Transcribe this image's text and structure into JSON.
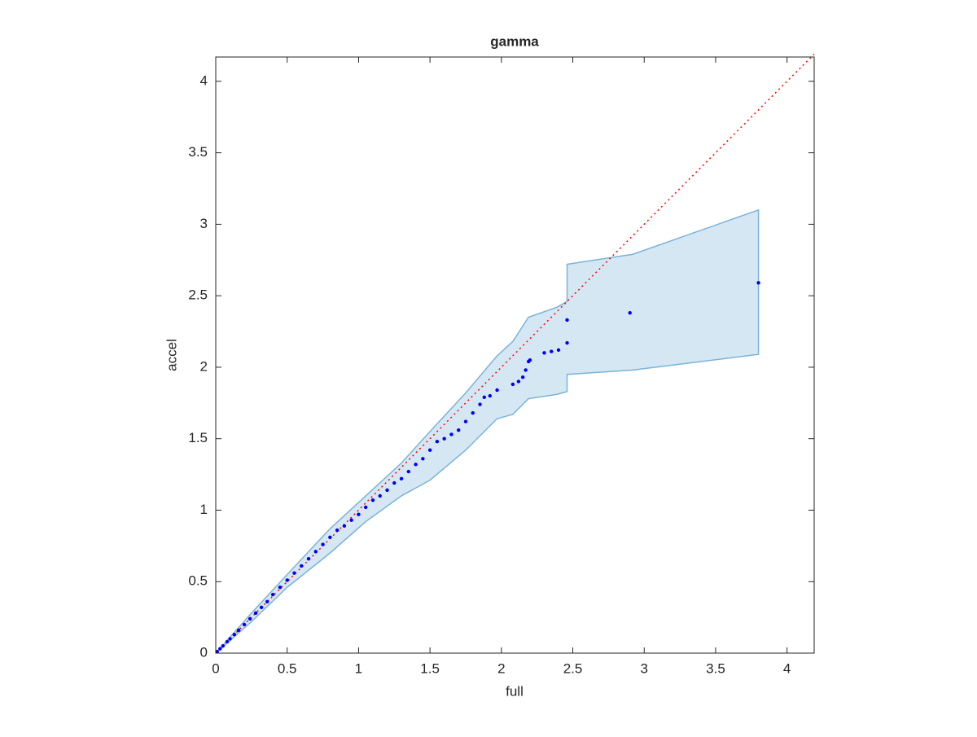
{
  "chart_data": {
    "type": "scatter",
    "title": "gamma",
    "x_label": "full",
    "y_label": "accel",
    "xlim": [
      0,
      4.19
    ],
    "ylim": [
      0,
      4.17
    ],
    "xticks": [
      0,
      0.5,
      1,
      1.5,
      2,
      2.5,
      3,
      3.5,
      4
    ],
    "yticks": [
      0,
      0.5,
      1,
      1.5,
      2,
      2.5,
      3,
      3.5,
      4
    ],
    "points": {
      "color": "#0000ff",
      "x": [
        0.01,
        0.03,
        0.05,
        0.08,
        0.1,
        0.13,
        0.16,
        0.2,
        0.24,
        0.28,
        0.32,
        0.36,
        0.4,
        0.45,
        0.5,
        0.55,
        0.6,
        0.65,
        0.7,
        0.75,
        0.8,
        0.85,
        0.9,
        0.95,
        1.0,
        1.05,
        1.1,
        1.15,
        1.2,
        1.25,
        1.3,
        1.35,
        1.4,
        1.45,
        1.5,
        1.55,
        1.6,
        1.65,
        1.7,
        1.75,
        1.8,
        1.85,
        1.88,
        1.92,
        1.97,
        2.08,
        2.12,
        2.15,
        2.17,
        2.19,
        2.2,
        2.3,
        2.35,
        2.4,
        2.46,
        2.46,
        2.9,
        3.8
      ],
      "y": [
        0.01,
        0.03,
        0.05,
        0.08,
        0.1,
        0.13,
        0.16,
        0.2,
        0.24,
        0.28,
        0.32,
        0.36,
        0.41,
        0.46,
        0.51,
        0.56,
        0.61,
        0.66,
        0.71,
        0.76,
        0.81,
        0.86,
        0.89,
        0.93,
        0.97,
        1.02,
        1.07,
        1.1,
        1.14,
        1.19,
        1.22,
        1.27,
        1.32,
        1.36,
        1.42,
        1.48,
        1.5,
        1.53,
        1.56,
        1.62,
        1.68,
        1.74,
        1.79,
        1.8,
        1.84,
        1.88,
        1.9,
        1.93,
        1.98,
        2.04,
        2.05,
        2.1,
        2.11,
        2.12,
        2.17,
        2.33,
        2.38,
        2.59
      ]
    },
    "band": {
      "color": "#7ab3d9",
      "fill": "#d6e7f4",
      "x": [
        0,
        0.25,
        0.5,
        0.8,
        1.05,
        1.3,
        1.5,
        1.75,
        1.97,
        2.08,
        2.19,
        2.39,
        2.46,
        2.46,
        2.92,
        3.8
      ],
      "upper": [
        0,
        0.28,
        0.55,
        0.87,
        1.1,
        1.33,
        1.55,
        1.82,
        2.08,
        2.18,
        2.35,
        2.42,
        2.46,
        2.72,
        2.79,
        3.1
      ],
      "lower": [
        0,
        0.22,
        0.46,
        0.7,
        0.92,
        1.1,
        1.21,
        1.42,
        1.64,
        1.67,
        1.78,
        1.81,
        1.83,
        1.95,
        1.98,
        2.09
      ]
    },
    "reference": {
      "color": "#ff0000",
      "x": [
        0,
        4.19
      ],
      "y": [
        0,
        4.19
      ]
    }
  }
}
